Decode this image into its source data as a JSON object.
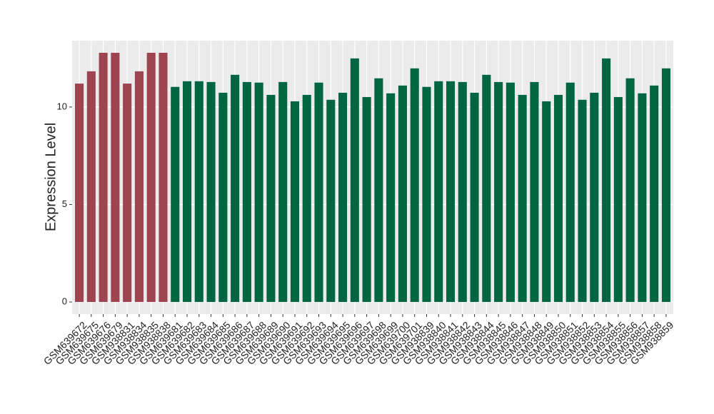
{
  "chart_data": {
    "type": "bar",
    "ylabel": "Expression Level",
    "categories": [
      "GSM639672",
      "GSM639675",
      "GSM639676",
      "GSM639679",
      "GSM938831",
      "GSM938834",
      "GSM938835",
      "GSM938838",
      "GSM639681",
      "GSM639682",
      "GSM639683",
      "GSM639684",
      "GSM639685",
      "GSM639686",
      "GSM639687",
      "GSM639688",
      "GSM639689",
      "GSM639690",
      "GSM639691",
      "GSM639692",
      "GSM639693",
      "GSM639694",
      "GSM639695",
      "GSM639696",
      "GSM639697",
      "GSM639698",
      "GSM639699",
      "GSM639700",
      "GSM639701",
      "GSM938839",
      "GSM938840",
      "GSM938841",
      "GSM938842",
      "GSM938843",
      "GSM938844",
      "GSM938845",
      "GSM938846",
      "GSM938847",
      "GSM938848",
      "GSM938849",
      "GSM938850",
      "GSM938851",
      "GSM938852",
      "GSM938853",
      "GSM938854",
      "GSM938855",
      "GSM938856",
      "GSM938857",
      "GSM938858",
      "GSM938859"
    ],
    "values": [
      11.2,
      11.83,
      12.78,
      12.78,
      11.2,
      11.83,
      12.78,
      12.78,
      11.03,
      11.32,
      11.32,
      11.28,
      10.73,
      11.65,
      11.28,
      11.25,
      10.62,
      11.28,
      10.29,
      10.62,
      11.25,
      10.37,
      10.73,
      12.49,
      10.51,
      11.47,
      10.7,
      11.1,
      11.98,
      11.03,
      11.32,
      11.32,
      11.28,
      10.73,
      11.65,
      11.28,
      11.25,
      10.62,
      11.28,
      10.29,
      10.62,
      11.25,
      10.37,
      10.73,
      12.49,
      10.51,
      11.47,
      10.7,
      11.1,
      11.98
    ],
    "colors": [
      "#9e4450",
      "#9e4450",
      "#9e4450",
      "#9e4450",
      "#9e4450",
      "#9e4450",
      "#9e4450",
      "#9e4450",
      "#006641",
      "#006641",
      "#006641",
      "#006641",
      "#006641",
      "#006641",
      "#006641",
      "#006641",
      "#006641",
      "#006641",
      "#006641",
      "#006641",
      "#006641",
      "#006641",
      "#006641",
      "#006641",
      "#006641",
      "#006641",
      "#006641",
      "#006641",
      "#006641",
      "#006641",
      "#006641",
      "#006641",
      "#006641",
      "#006641",
      "#006641",
      "#006641",
      "#006641",
      "#006641",
      "#006641",
      "#006641",
      "#006641",
      "#006641",
      "#006641",
      "#006641",
      "#006641",
      "#006641",
      "#006641",
      "#006641",
      "#006641",
      "#006641"
    ],
    "ylim": [
      -0.62,
      13.4
    ],
    "yticks": [
      0,
      5,
      10
    ],
    "grid": true
  }
}
